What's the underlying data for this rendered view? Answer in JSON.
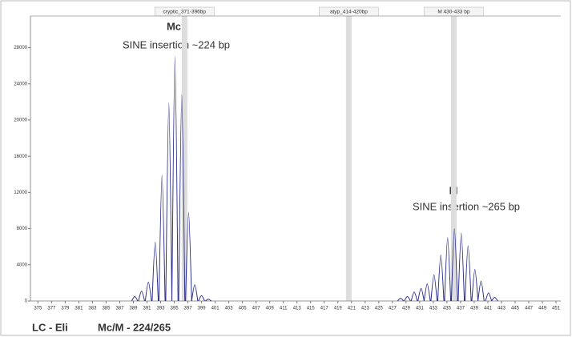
{
  "chart_data": {
    "type": "electropherogram",
    "xlim": [
      373.9,
      451.7
    ],
    "ylim": [
      0,
      31500
    ],
    "xticks": [
      375,
      377,
      379,
      381,
      383,
      385,
      387,
      389,
      391,
      393,
      395,
      397,
      399,
      401,
      403,
      405,
      407,
      409,
      411,
      413,
      415,
      417,
      419,
      421,
      423,
      425,
      427,
      429,
      431,
      433,
      435,
      437,
      439,
      441,
      443,
      445,
      447,
      449,
      451
    ],
    "yticks": [
      0,
      4000,
      8000,
      12000,
      16000,
      20000,
      24000,
      28000
    ],
    "color": "#2b2f8a",
    "x": [
      389.2,
      390.2,
      391.2,
      392.2,
      393.2,
      394.2,
      395.1,
      396.1,
      397.1,
      398.0,
      399.0,
      400.0,
      428.2,
      429.2,
      430.2,
      431.2,
      432.1,
      433.1,
      434.1,
      435.1,
      436.1,
      437.1,
      438.1,
      439.1,
      440.0,
      441.1,
      442.0
    ],
    "values": [
      500,
      1100,
      2100,
      6500,
      13900,
      21900,
      27000,
      22800,
      9800,
      1800,
      600,
      200,
      300,
      500,
      1000,
      1400,
      1900,
      2900,
      5100,
      7000,
      8000,
      7500,
      6100,
      3500,
      2200,
      900,
      400
    ],
    "markers": [
      {
        "label": "cryptic_371-396bp",
        "x": 396.5
      },
      {
        "label": "atyp_414-420bp",
        "x": 420.6
      },
      {
        "label": "M 430-433 bp",
        "x": 436.0
      }
    ],
    "annotations": [
      {
        "title": "Mc",
        "text": "SINE insertion ~224 bp"
      },
      {
        "title": "M",
        "text": "SINE insertion ~265 bp"
      }
    ],
    "footer": [
      "LC - Eli",
      "Mc/M - 224/265"
    ]
  }
}
